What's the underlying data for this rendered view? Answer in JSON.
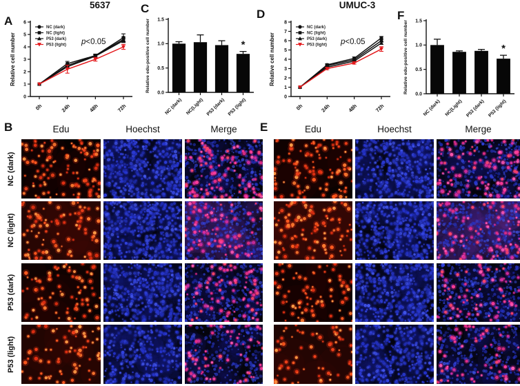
{
  "panels": {
    "a": "A",
    "b": "B",
    "c": "C",
    "d": "D",
    "e": "E",
    "f": "F"
  },
  "colors": {
    "axis": "#111111",
    "black_series": "#111111",
    "red_series": "#e4191c",
    "bar": "#070707",
    "edu_palette": [
      "#ff5a1f",
      "#ff7a30",
      "#f0401a",
      "#ff9b45",
      "#e22f12"
    ],
    "hoechst_palette": [
      "#2433cf",
      "#3344e2",
      "#1d2cb0",
      "#4155ea",
      "#2a3ad6"
    ],
    "merge_pink_palette": [
      "#ff3d9a",
      "#e62e88",
      "#ff58b0",
      "#d42da0",
      "#ff4668"
    ]
  },
  "chart_data": [
    {
      "id": "A",
      "type": "line",
      "title": "5637",
      "ylabel": "Relative cell number",
      "annotation": "p<0.05",
      "ylim": [
        0,
        6
      ],
      "ytick_step": 1,
      "categories": [
        "0h",
        "24h",
        "48h",
        "72h"
      ],
      "legend_position": "top-left",
      "series": [
        {
          "name": "NC (dark)",
          "marker": "circle",
          "color": "#111111",
          "values": [
            1.0,
            2.5,
            3.3,
            4.75
          ],
          "errors": [
            0,
            0.12,
            0.12,
            0.3
          ]
        },
        {
          "name": "NC (light)",
          "marker": "square",
          "color": "#111111",
          "values": [
            1.0,
            2.65,
            3.3,
            4.6
          ],
          "errors": [
            0,
            0.18,
            0.1,
            0.2
          ]
        },
        {
          "name": "P53 (dark)",
          "marker": "triangle",
          "color": "#111111",
          "values": [
            1.0,
            2.4,
            3.25,
            4.5
          ],
          "errors": [
            0,
            0.1,
            0.1,
            0.15
          ]
        },
        {
          "name": "P53 (light)",
          "marker": "triangle-down",
          "color": "#e4191c",
          "values": [
            1.0,
            2.2,
            3.0,
            4.0
          ],
          "errors": [
            0,
            0.32,
            0.15,
            0.2
          ]
        }
      ]
    },
    {
      "id": "C",
      "type": "bar",
      "ylabel": "Relative edu-positive cell number",
      "ylim": [
        0,
        1.5
      ],
      "ytick_step": 0.5,
      "categories": [
        "NC (dark)",
        "NC(Light)",
        "P53 (dark)",
        "P53 (light)"
      ],
      "values": [
        1.0,
        1.03,
        0.97,
        0.79
      ],
      "errors": [
        0.04,
        0.15,
        0.09,
        0.05
      ],
      "sig": [
        "",
        "",
        "",
        "*"
      ]
    },
    {
      "id": "D",
      "type": "line",
      "title": "UMUC-3",
      "ylabel": "Relative cell number",
      "annotation": "p<0.05",
      "ylim": [
        0,
        8
      ],
      "ytick_step": 1,
      "categories": [
        "0h",
        "24h",
        "48h",
        "72h"
      ],
      "legend_position": "top-left",
      "series": [
        {
          "name": "NC (dark)",
          "marker": "circle",
          "color": "#111111",
          "values": [
            1.0,
            3.4,
            4.1,
            6.3
          ],
          "errors": [
            0,
            0.12,
            0.15,
            0.15
          ]
        },
        {
          "name": "NC (light)",
          "marker": "square",
          "color": "#111111",
          "values": [
            1.0,
            3.3,
            3.95,
            6.0
          ],
          "errors": [
            0,
            0.1,
            0.12,
            0.15
          ]
        },
        {
          "name": "P53 (dark)",
          "marker": "triangle",
          "color": "#111111",
          "values": [
            1.0,
            3.15,
            3.8,
            5.75
          ],
          "errors": [
            0,
            0.1,
            0.1,
            0.15
          ]
        },
        {
          "name": "P53 (light)",
          "marker": "triangle-down",
          "color": "#e4191c",
          "values": [
            1.0,
            3.0,
            3.6,
            5.1
          ],
          "errors": [
            0,
            0.12,
            0.12,
            0.25
          ]
        }
      ]
    },
    {
      "id": "F",
      "type": "bar",
      "ylabel": "Relative edu-positive cell number",
      "ylim": [
        0,
        1.5
      ],
      "ytick_step": 0.5,
      "categories": [
        "NC (dark)",
        "NC(Light)",
        "P53 (dark)",
        "P53 (light)"
      ],
      "values": [
        1.0,
        0.86,
        0.88,
        0.72
      ],
      "errors": [
        0.12,
        0.02,
        0.03,
        0.07
      ],
      "sig": [
        "",
        "",
        "",
        "*"
      ]
    }
  ],
  "microscopy": {
    "panel_b": {
      "columns": [
        "Edu",
        "Hoechst",
        "Merge"
      ],
      "rows": [
        {
          "label": "NC (dark)",
          "edu_dots": 110,
          "nuclei_dots": 420,
          "edu_bg_tint": 0.06,
          "purple_haze": false
        },
        {
          "label": "NC (light)",
          "edu_dots": 92,
          "nuclei_dots": 430,
          "edu_bg_tint": 0.38,
          "purple_haze": true
        },
        {
          "label": "P53 (dark)",
          "edu_dots": 85,
          "nuclei_dots": 400,
          "edu_bg_tint": 0.1,
          "purple_haze": false
        },
        {
          "label": "P53 (light)",
          "edu_dots": 70,
          "nuclei_dots": 300,
          "edu_bg_tint": 0.3,
          "purple_haze": false
        }
      ]
    },
    "panel_e": {
      "columns": [
        "Edu",
        "Hoechst",
        "Merge"
      ],
      "rows": [
        {
          "label": "NC (dark)",
          "edu_dots": 110,
          "nuclei_dots": 380,
          "edu_bg_tint": 0.1,
          "purple_haze": false
        },
        {
          "label": "NC (light)",
          "edu_dots": 105,
          "nuclei_dots": 440,
          "edu_bg_tint": 0.45,
          "purple_haze": true
        },
        {
          "label": "P53 (dark)",
          "edu_dots": 80,
          "nuclei_dots": 420,
          "edu_bg_tint": 0.06,
          "purple_haze": false
        },
        {
          "label": "P53 (light)",
          "edu_dots": 68,
          "nuclei_dots": 330,
          "edu_bg_tint": 0.32,
          "purple_haze": false
        }
      ]
    }
  }
}
